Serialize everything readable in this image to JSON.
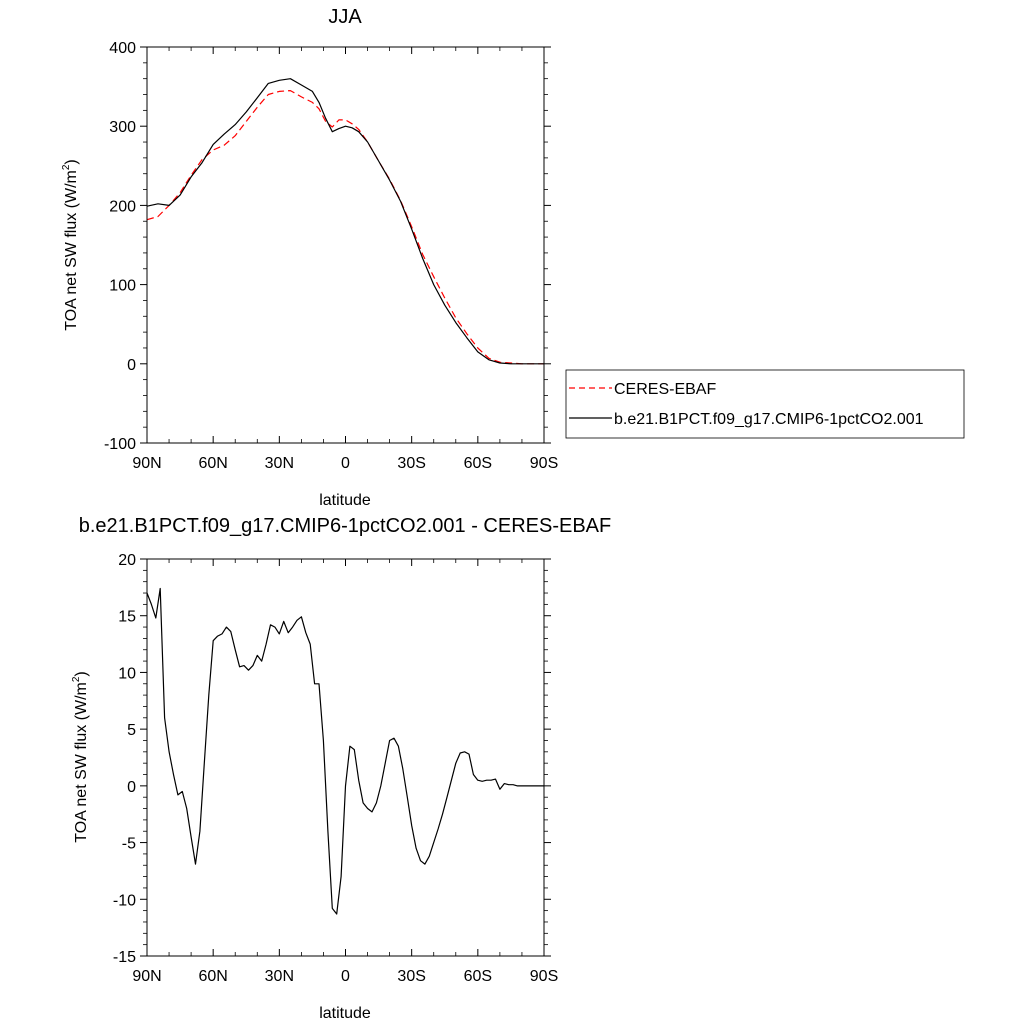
{
  "chart_data": [
    {
      "type": "line",
      "title": "JJA",
      "xlabel": "latitude",
      "ylabel_main": "TOA net SW flux (W/m",
      "ylabel_sup": "2",
      "ylabel_close": ")",
      "xlim": [
        90,
        -90
      ],
      "ylim": [
        -100,
        400
      ],
      "xtick_values": [
        90,
        60,
        30,
        0,
        -30,
        -60,
        -90
      ],
      "xtick_labels": [
        "90N",
        "60N",
        "30N",
        "0",
        "30S",
        "60S",
        "90S"
      ],
      "ytick_values": [
        -100,
        0,
        100,
        200,
        300,
        400
      ],
      "ytick_labels": [
        "-100",
        "0",
        "100",
        "200",
        "300",
        "400"
      ],
      "legend": {
        "placement": "outside-right"
      },
      "series": [
        {
          "name": "CERES-EBAF",
          "color": "#ff0000",
          "dash": "dashed",
          "x": [
            90,
            85,
            80,
            75,
            70,
            65,
            60,
            55,
            50,
            45,
            40,
            35,
            30,
            25,
            20,
            15,
            12,
            9,
            6,
            3,
            0,
            -3,
            -6,
            -10,
            -15,
            -20,
            -25,
            -30,
            -35,
            -40,
            -45,
            -50,
            -55,
            -60,
            -65,
            -70,
            -75,
            -80,
            -85,
            -90
          ],
          "y": [
            182,
            186,
            200,
            216,
            238,
            258,
            270,
            276,
            288,
            306,
            324,
            340,
            344,
            345,
            337,
            330,
            322,
            306,
            299,
            308,
            308,
            303,
            296,
            280,
            256,
            233,
            206,
            173,
            138,
            110,
            83,
            58,
            38,
            20,
            7,
            2,
            1,
            0,
            0,
            0
          ]
        },
        {
          "name": "b.e21.B1PCT.f09_g17.CMIP6-1pctCO2.001",
          "color": "#000000",
          "dash": "solid",
          "x": [
            90,
            85,
            80,
            75,
            70,
            65,
            60,
            55,
            50,
            45,
            40,
            35,
            30,
            25,
            20,
            15,
            12,
            9,
            6,
            3,
            0,
            -3,
            -6,
            -10,
            -15,
            -20,
            -25,
            -30,
            -35,
            -40,
            -45,
            -50,
            -55,
            -60,
            -65,
            -70,
            -75,
            -80,
            -85,
            -90
          ],
          "y": [
            199,
            202,
            200,
            213,
            236,
            254,
            277,
            290,
            302,
            318,
            336,
            354,
            358,
            360,
            352,
            344,
            330,
            310,
            293,
            297,
            300,
            298,
            293,
            280,
            256,
            232,
            205,
            170,
            133,
            100,
            74,
            52,
            33,
            15,
            5,
            1,
            0,
            0,
            0,
            0
          ]
        }
      ]
    },
    {
      "type": "line",
      "title": "b.e21.B1PCT.f09_g17.CMIP6-1pctCO2.001 - CERES-EBAF",
      "xlabel": "latitude",
      "ylabel_main": "TOA net SW flux (W/m",
      "ylabel_sup": "2",
      "ylabel_close": ")",
      "xlim": [
        90,
        -90
      ],
      "ylim": [
        -15,
        20
      ],
      "xtick_values": [
        90,
        60,
        30,
        0,
        -30,
        -60,
        -90
      ],
      "xtick_labels": [
        "90N",
        "60N",
        "30N",
        "0",
        "30S",
        "60S",
        "90S"
      ],
      "ytick_values": [
        -15,
        -10,
        -5,
        0,
        5,
        10,
        15,
        20
      ],
      "ytick_labels": [
        "-15",
        "-10",
        "-5",
        "0",
        "5",
        "10",
        "15",
        "20"
      ],
      "series": [
        {
          "color": "#000000",
          "dash": "solid",
          "x": [
            90,
            88,
            86,
            84,
            82,
            80,
            78,
            76,
            74,
            72,
            70,
            68,
            66,
            64,
            62,
            60,
            58,
            56,
            54,
            52,
            50,
            48,
            46,
            44,
            42,
            40,
            38,
            36,
            34,
            32,
            30,
            28,
            26,
            24,
            22,
            20,
            18,
            16,
            14,
            12,
            10,
            8,
            6,
            4,
            2,
            0,
            -2,
            -4,
            -6,
            -8,
            -10,
            -12,
            -14,
            -16,
            -18,
            -20,
            -22,
            -24,
            -26,
            -28,
            -30,
            -32,
            -34,
            -36,
            -38,
            -40,
            -42,
            -44,
            -46,
            -48,
            -50,
            -52,
            -54,
            -56,
            -58,
            -60,
            -62,
            -64,
            -66,
            -68,
            -70,
            -72,
            -74,
            -76,
            -78,
            -80,
            -82,
            -84,
            -86,
            -88,
            -90
          ],
          "y": [
            17.0,
            16.0,
            14.8,
            17.4,
            6.0,
            3.0,
            1.0,
            -0.8,
            -0.5,
            -2.0,
            -4.5,
            -6.9,
            -4.0,
            2.0,
            8.0,
            12.8,
            13.2,
            13.4,
            14.0,
            13.6,
            12.0,
            10.5,
            10.6,
            10.2,
            10.6,
            11.5,
            11.0,
            12.5,
            14.2,
            14.0,
            13.4,
            14.5,
            13.5,
            14.0,
            14.6,
            14.9,
            13.5,
            12.5,
            9.0,
            9.0,
            4.0,
            -4.0,
            -10.8,
            -11.3,
            -8.0,
            0.0,
            3.5,
            3.2,
            0.5,
            -1.5,
            -2.0,
            -2.3,
            -1.5,
            0.0,
            2.0,
            4.0,
            4.2,
            3.5,
            1.5,
            -1.0,
            -3.5,
            -5.5,
            -6.6,
            -6.9,
            -6.2,
            -5.0,
            -3.8,
            -2.5,
            -1.0,
            0.5,
            2.0,
            2.9,
            3.0,
            2.8,
            1.0,
            0.5,
            0.4,
            0.5,
            0.5,
            0.6,
            -0.3,
            0.2,
            0.1,
            0.1,
            0.0,
            0.0,
            0.0,
            0.0,
            0.0,
            0.0,
            0.0
          ]
        }
      ]
    }
  ]
}
